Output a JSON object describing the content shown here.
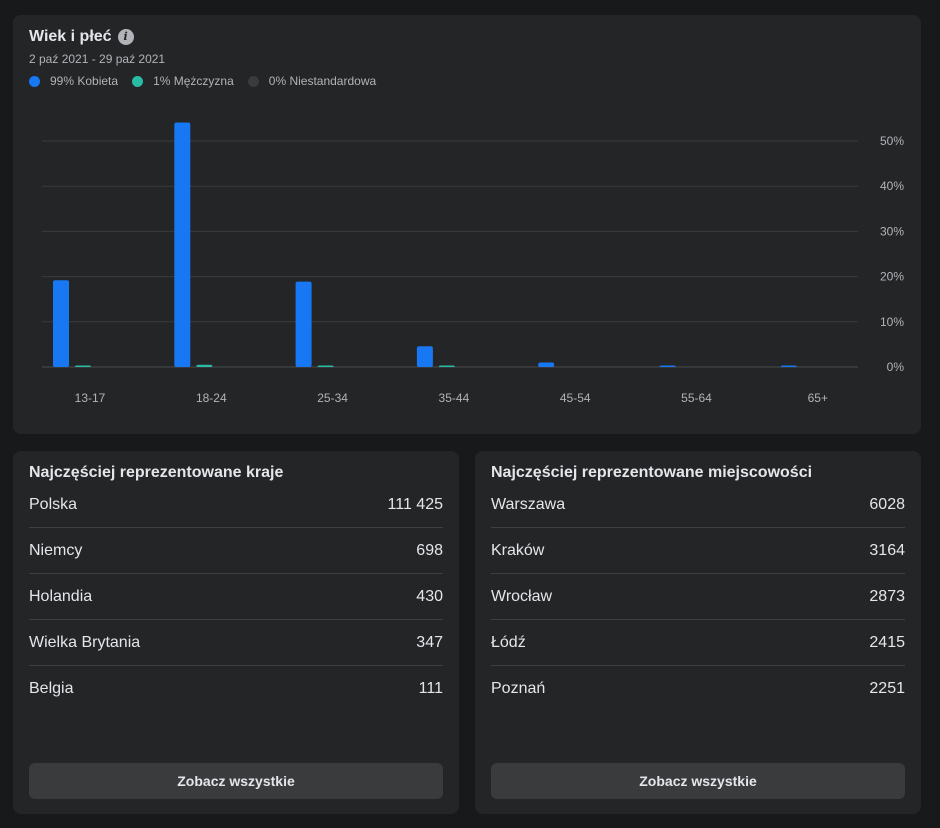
{
  "age_gender": {
    "title": "Wiek i płeć",
    "date_range": "2 paź 2021 - 29 paź 2021",
    "legend": [
      {
        "label": "99% Kobieta",
        "color": "#1877f2"
      },
      {
        "label": "1% Mężczyzna",
        "color": "#2abba7"
      },
      {
        "label": "0% Niestandardowa",
        "color": "#3a3b3c"
      }
    ]
  },
  "chart_data": {
    "type": "bar",
    "categories": [
      "13-17",
      "18-24",
      "25-34",
      "35-44",
      "45-54",
      "55-64",
      "65+"
    ],
    "series": [
      {
        "name": "Kobieta",
        "color": "#1877f2",
        "values": [
          19.2,
          54.1,
          18.9,
          4.6,
          1.0,
          0.2,
          0.2
        ]
      },
      {
        "name": "Mężczyzna",
        "color": "#2abba7",
        "values": [
          0.3,
          0.5,
          0.3,
          0.1,
          0.0,
          0.0,
          0.0
        ]
      },
      {
        "name": "Niestandardowa",
        "color": "#3a3b3c",
        "values": [
          0,
          0,
          0,
          0,
          0,
          0,
          0
        ]
      }
    ],
    "y_ticks": [
      "0%",
      "10%",
      "20%",
      "30%",
      "40%",
      "50%"
    ],
    "ylim": [
      0,
      50
    ],
    "grid": true
  },
  "countries": {
    "title": "Najczęściej reprezentowane kraje",
    "items": [
      {
        "name": "Polska",
        "value": "111 425"
      },
      {
        "name": "Niemcy",
        "value": "698"
      },
      {
        "name": "Holandia",
        "value": "430"
      },
      {
        "name": "Wielka Brytania",
        "value": "347"
      },
      {
        "name": "Belgia",
        "value": "111"
      }
    ],
    "button": "Zobacz wszystkie"
  },
  "cities": {
    "title": "Najczęściej reprezentowane miejscowości",
    "items": [
      {
        "name": "Warszawa",
        "value": "6028"
      },
      {
        "name": "Kraków",
        "value": "3164"
      },
      {
        "name": "Wrocław",
        "value": "2873"
      },
      {
        "name": "Łódź",
        "value": "2415"
      },
      {
        "name": "Poznań",
        "value": "2251"
      }
    ],
    "button": "Zobacz wszystkie"
  }
}
